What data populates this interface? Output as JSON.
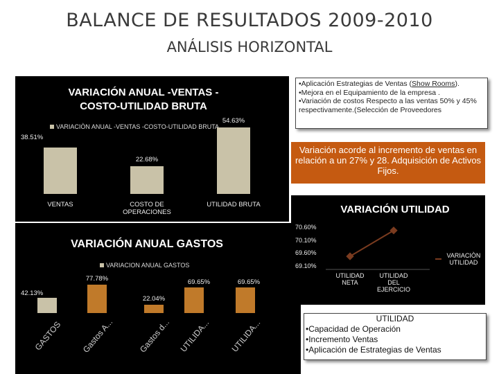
{
  "slide": {
    "title": "BALANCE DE RESULTADOS 2009-2010",
    "subtitle": "ANÁLISIS HORIZONTAL"
  },
  "colors": {
    "panel": "#000000",
    "bar_tan": "#c9c2a8",
    "bar_orange": "#c07a2a",
    "note_orange": "#c55a11",
    "line_brown": "#7a3b1f"
  },
  "chart_data": [
    {
      "type": "bar",
      "title": "VARIACIÓN ANUAL -VENTAS -COSTO-UTILIDAD BRUTA",
      "legend": "VARIACIÒN ANUAL -VENTAS -COSTO-UTILIDAD BRUTA",
      "categories": [
        "VENTAS",
        "COSTO DE OPERACIONES",
        "UTILIDAD BRUTA"
      ],
      "values": [
        38.51,
        22.68,
        54.63
      ],
      "data_labels": [
        "38.51%",
        "22.68%",
        "54.63%"
      ],
      "ylim": [
        0,
        60
      ]
    },
    {
      "type": "bar",
      "title": "VARIACIÓN ANUAL GASTOS",
      "legend": "VARIACION ANUAL GASTOS",
      "categories": [
        "GASTOS",
        "Gastos A...",
        "Gastos d...",
        "UTILIDA...",
        "UTILIDA..."
      ],
      "values": [
        42.13,
        77.78,
        22.04,
        69.65,
        69.65
      ],
      "data_labels": [
        "42.13%",
        "77.78%",
        "22.04%",
        "69.65%",
        "69.65%"
      ],
      "ylim": [
        0,
        80
      ]
    },
    {
      "type": "line",
      "title": "VARIACIÓN UTILIDAD",
      "categories": [
        "UTILIDAD NETA",
        "UTILIDAD DEL EJERCICIO"
      ],
      "series": [
        {
          "name": "VARIACIÒN UTILIDAD",
          "values": [
            69.5,
            70.5
          ]
        }
      ],
      "yticks": [
        "70.60%",
        "70.10%",
        "69.60%",
        "69.10%"
      ],
      "ylim": [
        69.1,
        70.6
      ]
    }
  ],
  "notes": {
    "top_right_lines": [
      "•Aplicación Estrategias de Ventas (",
      "Show Rooms",
      ").",
      "•Mejora en el Equipamiento  de la empresa .",
      "•Variación de costos Respecto a las ventas 50% y  45% respectivamente.(Selección de Proveedores"
    ],
    "variation_text": "Variación acorde al incremento de ventas en relación a un 27% y 28.  Adquisición de Activos Fijos.",
    "bottom_right": {
      "heading": "UTILIDAD",
      "items": [
        "•Capacidad de Operación",
        "•Incremento Ventas",
        "•Aplicación de Estrategias de Ventas"
      ]
    }
  }
}
